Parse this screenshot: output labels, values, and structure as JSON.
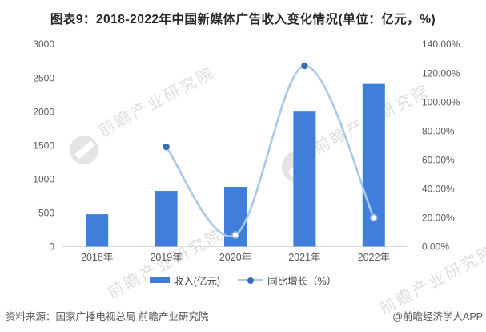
{
  "title": "图表9：2018-2022年中国新媒体广告收入变化情况(单位：亿元，%)",
  "chart_data": {
    "type": "combo-bar-line",
    "title": "图表9：2018-2022年中国新媒体广告收入变化情况(单位：亿元，%)",
    "categories": [
      "2018年",
      "2019年",
      "2020年",
      "2021年",
      "2022年"
    ],
    "series": [
      {
        "name": "收入(亿元)",
        "type": "bar",
        "axis": "left",
        "values": [
          480,
          825,
          885,
          2000,
          2410
        ]
      },
      {
        "name": "同比增长（%）",
        "type": "line",
        "axis": "right",
        "x": [
          "2019年",
          "2020年",
          "2021年",
          "2022年"
        ],
        "values": [
          69,
          8,
          125,
          20
        ],
        "marker_styles": [
          "filled",
          "open",
          "filled",
          "open"
        ]
      }
    ],
    "left_axis": {
      "min": 0,
      "max": 3000,
      "step": 500,
      "ticks": [
        "0",
        "500",
        "1000",
        "1500",
        "2000",
        "2500",
        "3000"
      ]
    },
    "right_axis": {
      "min": 0,
      "max": 140,
      "step": 20,
      "ticks": [
        "0.00%",
        "20.00%",
        "40.00%",
        "60.00%",
        "80.00%",
        "100.00%",
        "120.00%",
        "140.00%"
      ]
    },
    "grid": false,
    "legend_position": "bottom"
  },
  "legend": {
    "bar_label": "收入(亿元)",
    "line_label": "同比增长（%）"
  },
  "footer": {
    "source": "资料来源：国家广播电视总局 前瞻产业研究院",
    "credit": "@前瞻经济学人APP"
  },
  "watermark": {
    "text": "前瞻产业研究院"
  },
  "colors": {
    "bar": "#3F7EDB",
    "line": "#A6C8EA",
    "marker_filled": "#3B6CB4",
    "marker_open_stroke": "#93B5DC",
    "axis_line": "#D9D9D9",
    "tick_label": "#595959",
    "title": "#262626",
    "footer": "#595959",
    "watermark": "#DEDEDE"
  }
}
